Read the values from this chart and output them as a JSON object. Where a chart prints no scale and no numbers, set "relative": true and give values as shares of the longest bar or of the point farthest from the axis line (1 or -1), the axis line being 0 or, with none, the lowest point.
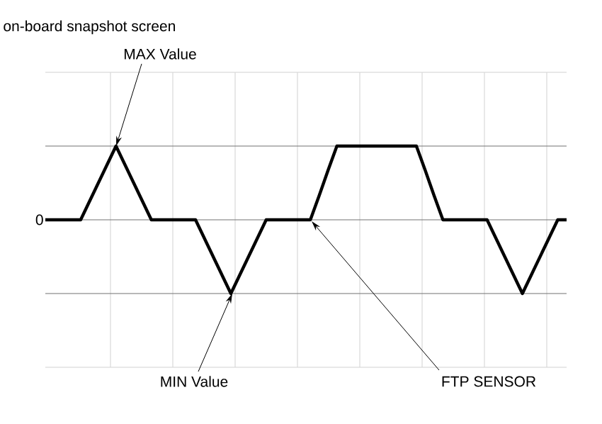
{
  "chart_data": {
    "type": "line",
    "title": "on-board snapshot screen",
    "relative": true,
    "categories": [
      null,
      null,
      null,
      null,
      null,
      null,
      null,
      null,
      null,
      null,
      null,
      null,
      null,
      null,
      null,
      null,
      null,
      null,
      null,
      null,
      null,
      null,
      null,
      null,
      null,
      null,
      null,
      null,
      null,
      null,
      null,
      null,
      null,
      null,
      null,
      null,
      null,
      null,
      null,
      null,
      null,
      null,
      null,
      null,
      null,
      null,
      null,
      null,
      null,
      null,
      null,
      null,
      null,
      null,
      null,
      null,
      null,
      null,
      null,
      null
    ],
    "series": [
      {
        "color": "#000000",
        "values": [
          0,
          0,
          0,
          0,
          0,
          0.25,
          0.5,
          0.75,
          1,
          0.75,
          0.5,
          0.25,
          0,
          0,
          0,
          0,
          0,
          0,
          -0.25,
          -0.5,
          -0.75,
          -1,
          -0.75,
          -0.5,
          -0.25,
          0,
          0,
          0,
          0,
          0,
          0,
          0.33,
          0.67,
          1,
          1,
          1,
          1,
          1,
          1,
          1,
          1,
          1,
          1,
          0.67,
          0.33,
          0,
          0,
          0,
          0,
          0,
          0,
          -0.25,
          -0.5,
          -0.75,
          -1,
          -0.75,
          -0.5,
          -0.25,
          0,
          0
        ]
      }
    ],
    "grid": true,
    "marker": "none",
    "line_style": "solid",
    "annotations": [
      "0",
      "MAX Value",
      "MIN Value",
      "FTP SENSOR"
    ]
  }
}
